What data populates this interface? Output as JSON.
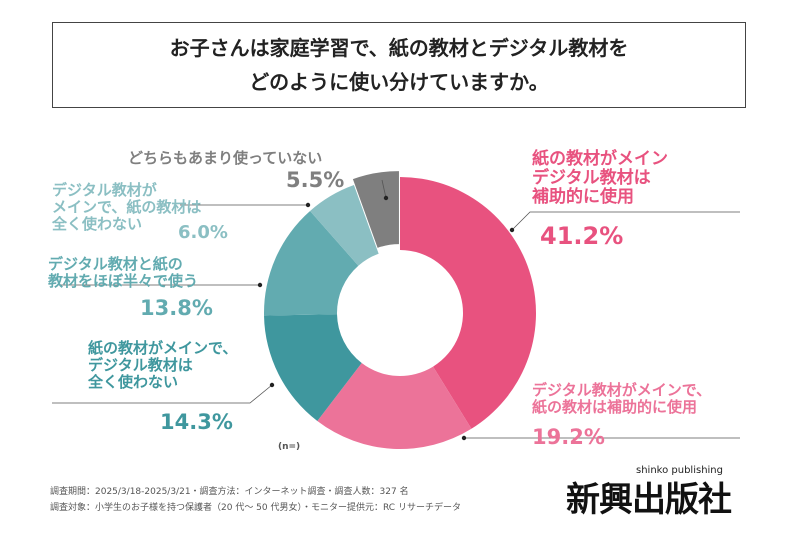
{
  "title": {
    "line1": "お子さんは家庭学習で、紙の教材とデジタル教材を",
    "line2": "どのように使い分けていますか。"
  },
  "chart_data": {
    "type": "pie",
    "donut": true,
    "slices": [
      {
        "label": [
          "紙の教材がメイン",
          "デジタル教材は",
          "補助的に使用"
        ],
        "value": 41.2,
        "display": "41.2%",
        "color": "#e8527f"
      },
      {
        "label": [
          "デジタル教材がメインで、",
          "紙の教材は補助的に使用"
        ],
        "value": 19.2,
        "display": "19.2%",
        "color": "#ec7399"
      },
      {
        "label": [
          "紙の教材がメインで、",
          "デジタル教材は",
          "全く使わない"
        ],
        "value": 14.3,
        "display": "14.3%",
        "color": "#3f979e"
      },
      {
        "label": [
          "デジタル教材と紙の",
          "教材をほぼ半々で使う"
        ],
        "value": 13.8,
        "display": "13.8%",
        "color": "#62abb0"
      },
      {
        "label": [
          "デジタル教材が",
          "メインで、紙の教材は",
          "全く使わない"
        ],
        "value": 6.0,
        "display": "6.0%",
        "color": "#8bbfc3"
      },
      {
        "label": [
          "どちらもあまり使っていない"
        ],
        "value": 5.5,
        "display": "5.5%",
        "color": "#7f7f7f"
      }
    ],
    "n_label": "(n=)"
  },
  "notes": {
    "line1": "調査期間：2025/3/18-2025/3/21・調査方法：インターネット調査・調査人数：327 名",
    "line2": "調査対象：小学生のお子様を持つ保護者（20 代～ 50 代男女）・モニター提供元：RC リサーチデータ"
  },
  "logo": {
    "text": "新興出版社",
    "sub": "shinko publishing"
  }
}
